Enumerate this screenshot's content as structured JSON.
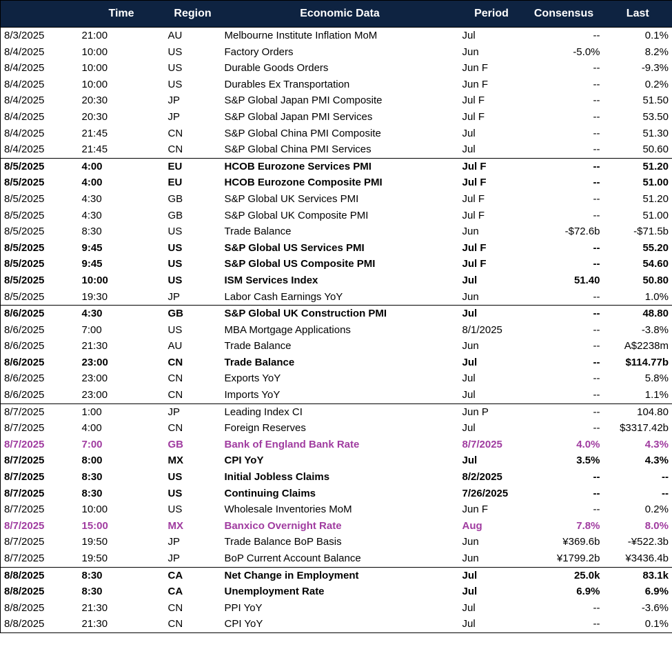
{
  "header": {
    "columns": [
      "Time",
      "Region",
      "Economic Data",
      "Period",
      "Consensus",
      "Last"
    ]
  },
  "groups": [
    {
      "rows": [
        {
          "cells": [
            "8/3/2025",
            "21:00",
            "AU",
            "Melbourne Institute Inflation MoM",
            "Jul",
            "--",
            "0.1%"
          ]
        },
        {
          "cells": [
            "8/4/2025",
            "10:00",
            "US",
            "Factory Orders",
            "Jun",
            "-5.0%",
            "8.2%"
          ]
        },
        {
          "cells": [
            "8/4/2025",
            "10:00",
            "US",
            "Durable Goods Orders",
            "Jun F",
            "--",
            "-9.3%"
          ]
        },
        {
          "cells": [
            "8/4/2025",
            "10:00",
            "US",
            "Durables Ex Transportation",
            "Jun F",
            "--",
            "0.2%"
          ]
        },
        {
          "cells": [
            "8/4/2025",
            "20:30",
            "JP",
            "S&P Global Japan PMI Composite",
            "Jul F",
            "--",
            "51.50"
          ]
        },
        {
          "cells": [
            "8/4/2025",
            "20:30",
            "JP",
            "S&P Global Japan PMI Services",
            "Jul F",
            "--",
            "53.50"
          ]
        },
        {
          "cells": [
            "8/4/2025",
            "21:45",
            "CN",
            "S&P Global China PMI Composite",
            "Jul",
            "--",
            "51.30"
          ]
        },
        {
          "cells": [
            "8/4/2025",
            "21:45",
            "CN",
            "S&P Global China PMI Services",
            "Jul",
            "--",
            "50.60"
          ]
        }
      ]
    },
    {
      "rows": [
        {
          "cells": [
            "8/5/2025",
            "4:00",
            "EU",
            "HCOB Eurozone Services PMI",
            "Jul F",
            "--",
            "51.20"
          ],
          "bold": true
        },
        {
          "cells": [
            "8/5/2025",
            "4:00",
            "EU",
            "HCOB Eurozone Composite PMI",
            "Jul F",
            "--",
            "51.00"
          ],
          "bold": true
        },
        {
          "cells": [
            "8/5/2025",
            "4:30",
            "GB",
            "S&P Global UK Services PMI",
            "Jul F",
            "--",
            "51.20"
          ]
        },
        {
          "cells": [
            "8/5/2025",
            "4:30",
            "GB",
            "S&P Global UK Composite PMI",
            "Jul F",
            "--",
            "51.00"
          ]
        },
        {
          "cells": [
            "8/5/2025",
            "8:30",
            "US",
            "Trade Balance",
            "Jun",
            "-$72.6b",
            "-$71.5b"
          ]
        },
        {
          "cells": [
            "8/5/2025",
            "9:45",
            "US",
            "S&P Global US Services PMI",
            "Jul F",
            "--",
            "55.20"
          ],
          "bold": true
        },
        {
          "cells": [
            "8/5/2025",
            "9:45",
            "US",
            "S&P Global US Composite PMI",
            "Jul F",
            "--",
            "54.60"
          ],
          "bold": true
        },
        {
          "cells": [
            "8/5/2025",
            "10:00",
            "US",
            "ISM Services Index",
            "Jul",
            "51.40",
            "50.80"
          ],
          "bold": true
        },
        {
          "cells": [
            "8/5/2025",
            "19:30",
            "JP",
            "Labor Cash Earnings YoY",
            "Jun",
            "--",
            "1.0%"
          ]
        }
      ]
    },
    {
      "rows": [
        {
          "cells": [
            "8/6/2025",
            "4:30",
            "GB",
            "S&P Global UK Construction PMI",
            "Jul",
            "--",
            "48.80"
          ],
          "bold": true
        },
        {
          "cells": [
            "8/6/2025",
            "7:00",
            "US",
            "MBA Mortgage Applications",
            "8/1/2025",
            "--",
            "-3.8%"
          ]
        },
        {
          "cells": [
            "8/6/2025",
            "21:30",
            "AU",
            "Trade Balance",
            "Jun",
            "--",
            "A$2238m"
          ]
        },
        {
          "cells": [
            "8/6/2025",
            "23:00",
            "CN",
            "Trade Balance",
            "Jul",
            "--",
            "$114.77b"
          ],
          "bold": true
        },
        {
          "cells": [
            "8/6/2025",
            "23:00",
            "CN",
            "Exports YoY",
            "Jul",
            "--",
            "5.8%"
          ]
        },
        {
          "cells": [
            "8/6/2025",
            "23:00",
            "CN",
            "Imports YoY",
            "Jul",
            "--",
            "1.1%"
          ]
        }
      ]
    },
    {
      "rows": [
        {
          "cells": [
            "8/7/2025",
            "1:00",
            "JP",
            "Leading Index CI",
            "Jun P",
            "--",
            "104.80"
          ]
        },
        {
          "cells": [
            "8/7/2025",
            "4:00",
            "CN",
            "Foreign Reserves",
            "Jul",
            "--",
            "$3317.42b"
          ]
        },
        {
          "cells": [
            "8/7/2025",
            "7:00",
            "GB",
            "Bank of England Bank Rate",
            "8/7/2025",
            "4.0%",
            "4.3%"
          ],
          "bold": true,
          "color": "#a03ca0"
        },
        {
          "cells": [
            "8/7/2025",
            "8:00",
            "MX",
            "CPI YoY",
            "Jul",
            "3.5%",
            "4.3%"
          ],
          "bold": true
        },
        {
          "cells": [
            "8/7/2025",
            "8:30",
            "US",
            "Initial Jobless Claims",
            "8/2/2025",
            "--",
            "--"
          ],
          "bold": true
        },
        {
          "cells": [
            "8/7/2025",
            "8:30",
            "US",
            "Continuing Claims",
            "7/26/2025",
            "--",
            "--"
          ],
          "bold": true
        },
        {
          "cells": [
            "8/7/2025",
            "10:00",
            "US",
            "Wholesale Inventories MoM",
            "Jun F",
            "--",
            "0.2%"
          ]
        },
        {
          "cells": [
            "8/7/2025",
            "15:00",
            "MX",
            "Banxico Overnight Rate",
            "Aug",
            "7.8%",
            "8.0%"
          ],
          "bold": true,
          "color": "#a03ca0"
        },
        {
          "cells": [
            "8/7/2025",
            "19:50",
            "JP",
            "Trade Balance BoP Basis",
            "Jun",
            "¥369.6b",
            "-¥522.3b"
          ]
        },
        {
          "cells": [
            "8/7/2025",
            "19:50",
            "JP",
            "BoP Current Account Balance",
            "Jun",
            "¥1799.2b",
            "¥3436.4b"
          ]
        }
      ]
    },
    {
      "rows": [
        {
          "cells": [
            "8/8/2025",
            "8:30",
            "CA",
            "Net Change in Employment",
            "Jul",
            "25.0k",
            "83.1k"
          ],
          "bold": true
        },
        {
          "cells": [
            "8/8/2025",
            "8:30",
            "CA",
            "Unemployment Rate",
            "Jul",
            "6.9%",
            "6.9%"
          ],
          "bold": true
        },
        {
          "cells": [
            "8/8/2025",
            "21:30",
            "CN",
            "PPI YoY",
            "Jul",
            "--",
            "-3.6%"
          ]
        },
        {
          "cells": [
            "8/8/2025",
            "21:30",
            "CN",
            "CPI YoY",
            "Jul",
            "--",
            "0.1%"
          ]
        }
      ]
    }
  ]
}
